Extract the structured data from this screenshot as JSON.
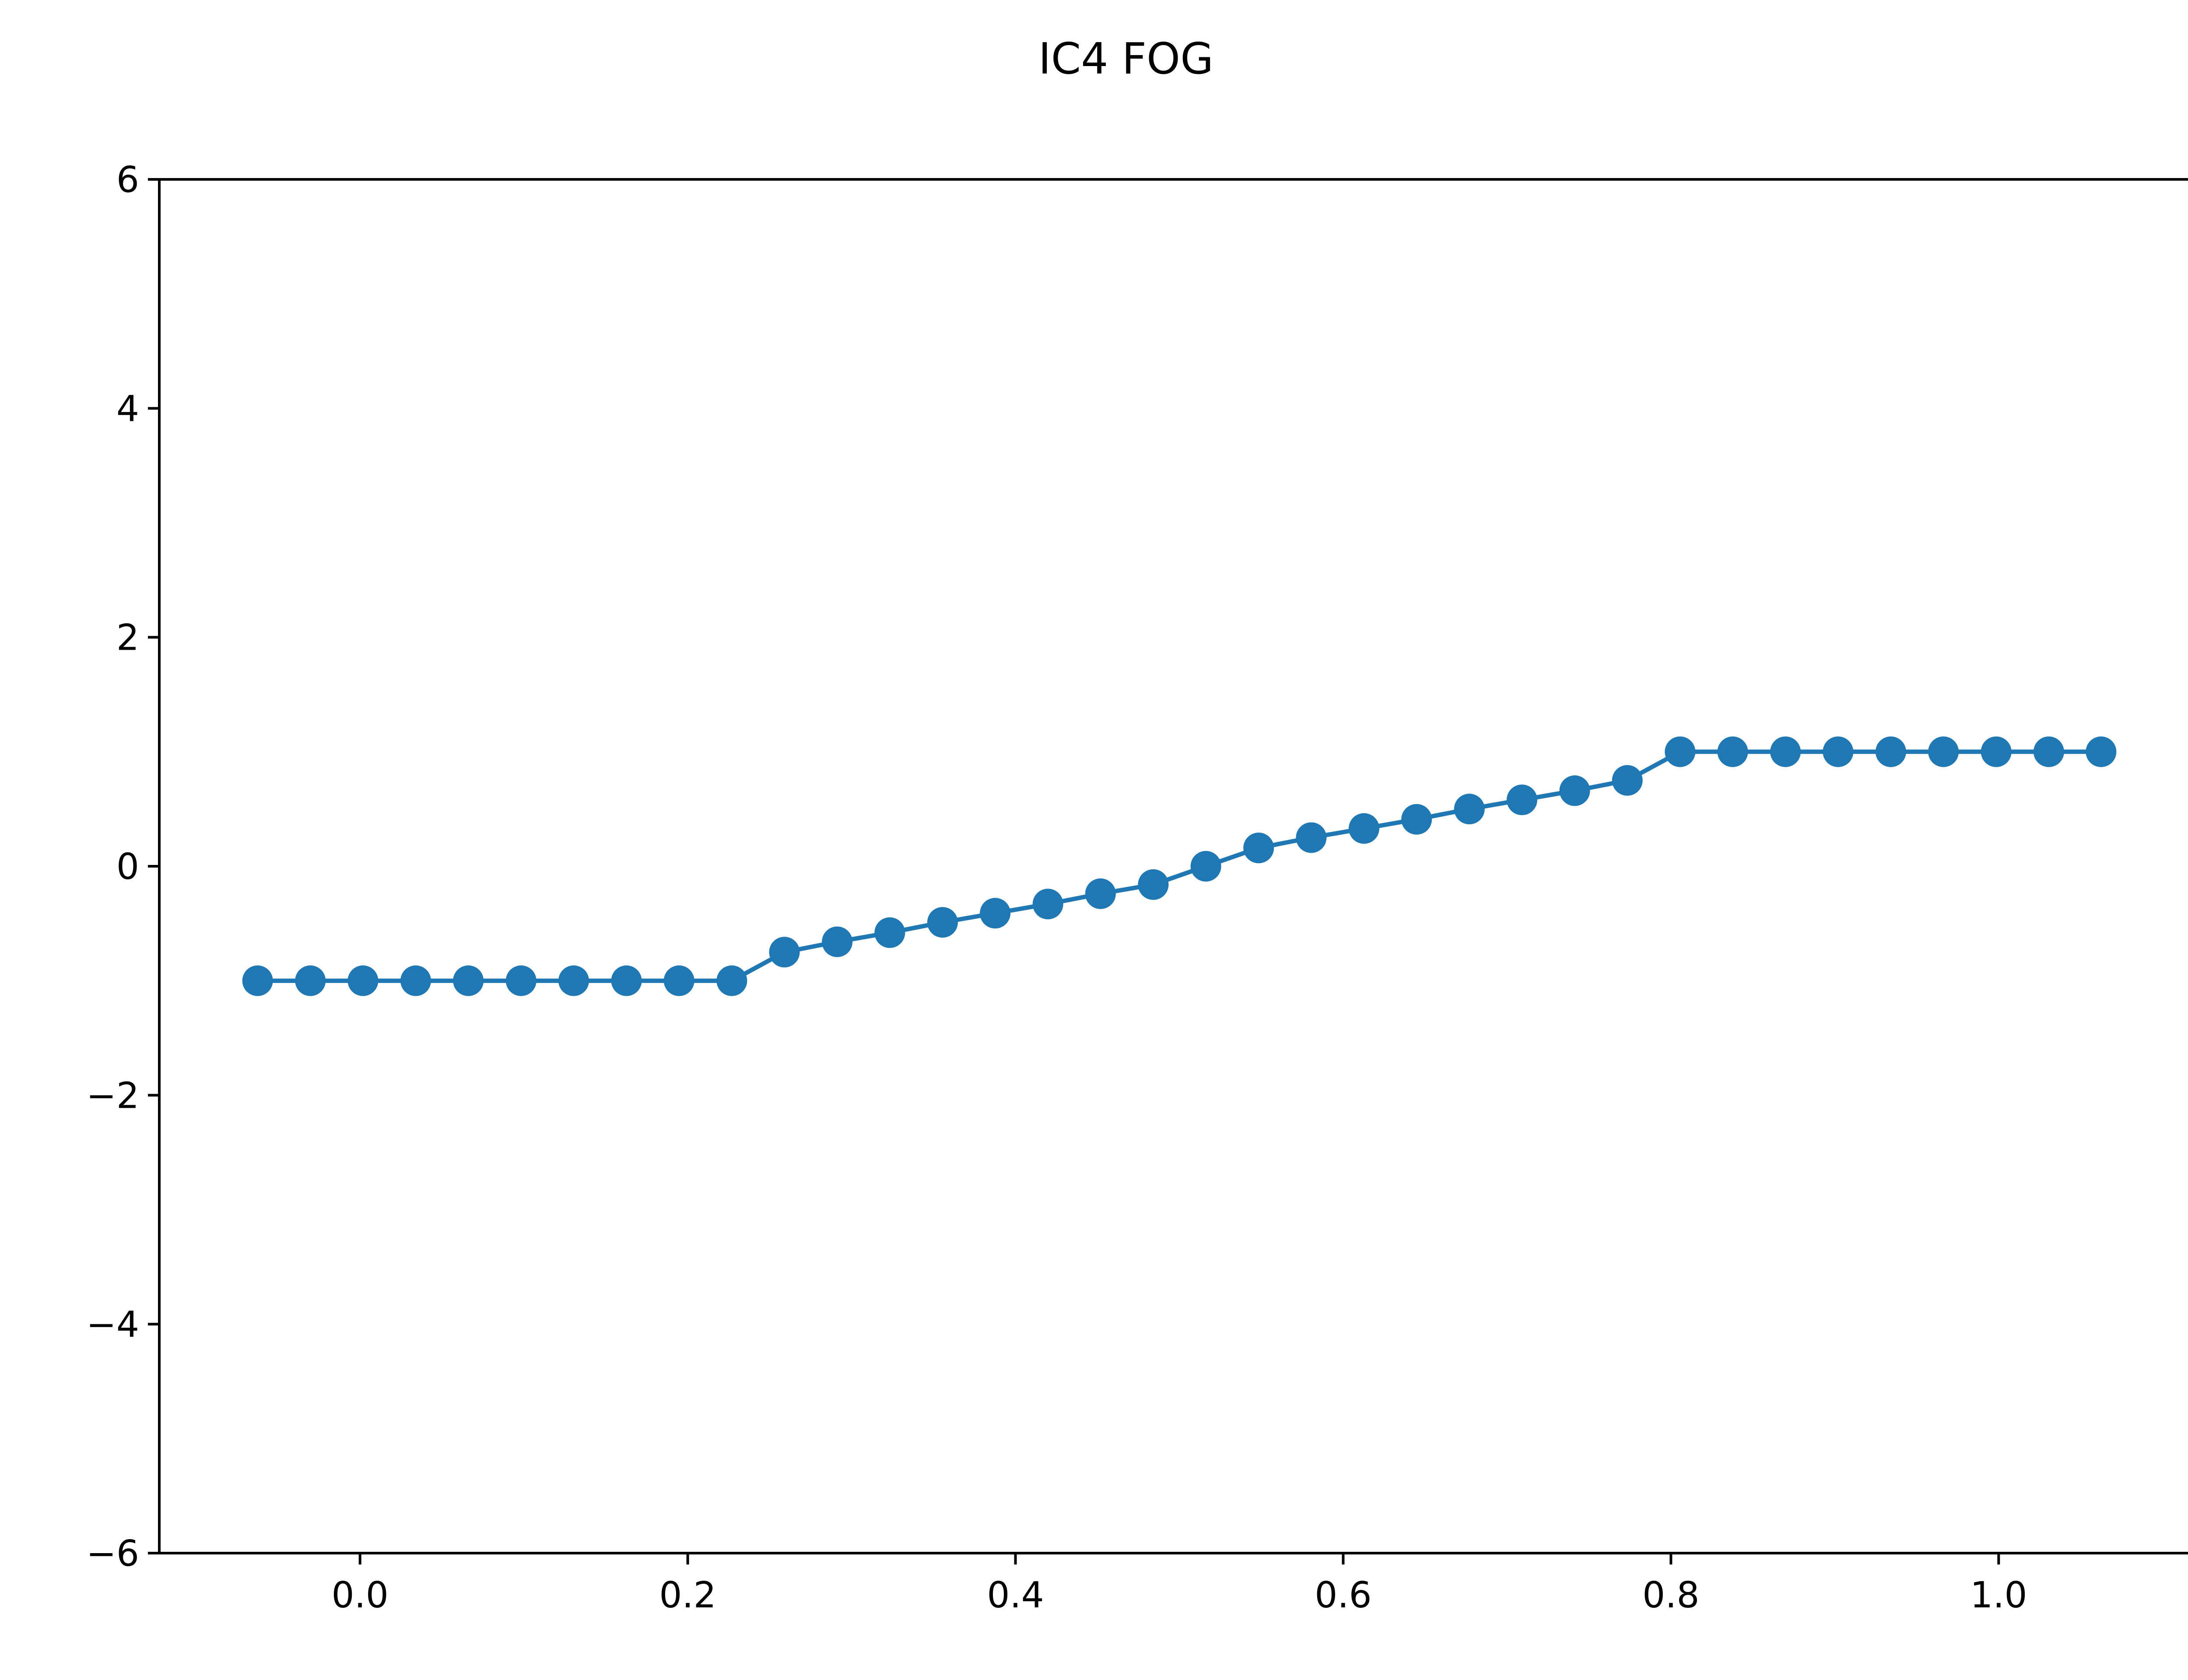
{
  "chart_data": {
    "type": "line",
    "title": "IC4 FOG",
    "xlabel": "",
    "ylabel": "",
    "xlim": [
      -0.1225,
      1.1225
    ],
    "ylim": [
      -6,
      6
    ],
    "x_ticks": [
      "0.0",
      "0.2",
      "0.4",
      "0.6",
      "0.8",
      "1.0"
    ],
    "x_tick_values": [
      0.0,
      0.2,
      0.4,
      0.6,
      0.8,
      1.0
    ],
    "y_ticks": [
      "−6",
      "−4",
      "−2",
      "0",
      "2",
      "4",
      "6"
    ],
    "y_tick_values": [
      -6,
      -4,
      -2,
      0,
      2,
      4,
      6
    ],
    "grid": false,
    "legend": false,
    "color": "#1f77b4",
    "marker": "circle",
    "series": [
      {
        "x": [
          -0.0625,
          -0.0303,
          0.0018,
          0.034,
          0.0661,
          0.0983,
          0.1304,
          0.1626,
          0.1947,
          0.2269,
          0.259,
          0.2912,
          0.3233,
          0.3555,
          0.3876,
          0.4198,
          0.4519,
          0.4841,
          0.5162,
          0.5484,
          0.5805,
          0.6127,
          0.6448,
          0.677,
          0.7091,
          0.7413,
          0.7734,
          0.8056,
          0.8377,
          0.8699,
          0.902,
          0.9342,
          0.9663,
          0.9985,
          1.0306,
          1.0625
        ],
        "y": [
          -1,
          -1,
          -1,
          -1,
          -1,
          -1,
          -1,
          -1,
          -1,
          -1,
          -0.75,
          -0.66,
          -0.58,
          -0.49,
          -0.41,
          -0.33,
          -0.24,
          -0.16,
          0.0,
          0.16,
          0.25,
          0.33,
          0.41,
          0.5,
          0.58,
          0.66,
          0.75,
          1,
          1,
          1,
          1,
          1,
          1,
          1,
          1,
          1
        ]
      }
    ]
  }
}
